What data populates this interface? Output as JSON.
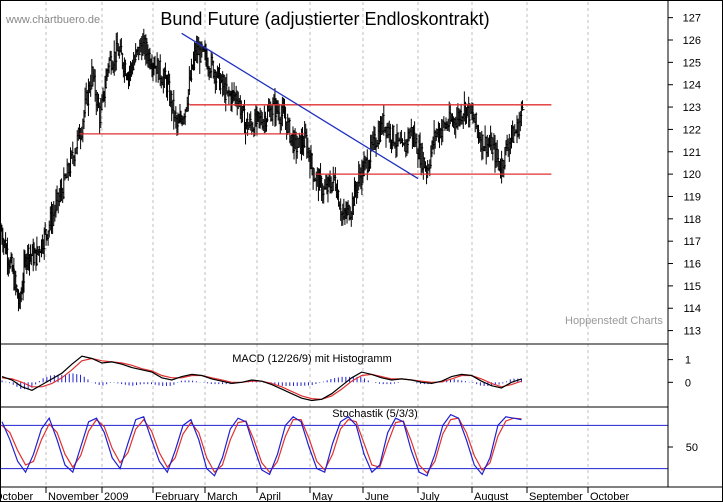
{
  "watermark": "www.chartbuero.de",
  "credit": "Hoppenstedt Charts",
  "colors": {
    "price_bar": "#000000",
    "support_line": "#e03030",
    "trend_line": "#2030c0",
    "macd_line": "#000000",
    "signal_line": "#e03030",
    "histogram": "#2020d0",
    "stoch_k": "#2020d0",
    "stoch_d": "#e03030",
    "stoch_level": "#2020d0",
    "grid": "#bfbfbf",
    "panel_border": "#000000"
  },
  "x_axis_labels": [
    "October",
    "November",
    "2009",
    "February",
    "March",
    "April",
    "May",
    "June",
    "July",
    "August",
    "September",
    "October"
  ],
  "chart_data": [
    {
      "type": "ohlc",
      "title": "Bund Future (adjustierter Endloskontrakt)",
      "ylim": [
        112.4,
        127.7
      ],
      "y_ticks": [
        113,
        114,
        115,
        116,
        117,
        118,
        119,
        120,
        121,
        122,
        123,
        124,
        125,
        126,
        127
      ],
      "approx_closes": [
        {
          "m": 0.0,
          "v": 117.5
        },
        {
          "m": 0.25,
          "v": 115.6
        },
        {
          "m": 0.4,
          "v": 114.1
        },
        {
          "m": 0.55,
          "v": 116.5
        },
        {
          "m": 0.75,
          "v": 116.3
        },
        {
          "m": 1.0,
          "v": 117.5
        },
        {
          "m": 1.3,
          "v": 119.5
        },
        {
          "m": 1.6,
          "v": 122.0
        },
        {
          "m": 1.8,
          "v": 124.5
        },
        {
          "m": 1.95,
          "v": 122.5
        },
        {
          "m": 2.1,
          "v": 125.0
        },
        {
          "m": 2.3,
          "v": 125.5
        },
        {
          "m": 2.5,
          "v": 124.5
        },
        {
          "m": 2.75,
          "v": 125.8
        },
        {
          "m": 3.0,
          "v": 125.0
        },
        {
          "m": 3.25,
          "v": 124.0
        },
        {
          "m": 3.45,
          "v": 122.0
        },
        {
          "m": 3.6,
          "v": 123.0
        },
        {
          "m": 3.8,
          "v": 125.5
        },
        {
          "m": 4.0,
          "v": 125.2
        },
        {
          "m": 4.2,
          "v": 124.5
        },
        {
          "m": 4.4,
          "v": 123.5
        },
        {
          "m": 4.6,
          "v": 123.5
        },
        {
          "m": 4.75,
          "v": 122.2
        },
        {
          "m": 4.9,
          "v": 122.2
        },
        {
          "m": 5.1,
          "v": 122.5
        },
        {
          "m": 5.3,
          "v": 123.0
        },
        {
          "m": 5.5,
          "v": 122.5
        },
        {
          "m": 5.7,
          "v": 121.2
        },
        {
          "m": 5.9,
          "v": 121.5
        },
        {
          "m": 6.05,
          "v": 120.0
        },
        {
          "m": 6.25,
          "v": 119.2
        },
        {
          "m": 6.45,
          "v": 119.8
        },
        {
          "m": 6.6,
          "v": 118.0
        },
        {
          "m": 6.75,
          "v": 118.5
        },
        {
          "m": 6.9,
          "v": 119.8
        },
        {
          "m": 7.05,
          "v": 120.5
        },
        {
          "m": 7.2,
          "v": 121.5
        },
        {
          "m": 7.35,
          "v": 122.3
        },
        {
          "m": 7.5,
          "v": 121.8
        },
        {
          "m": 7.7,
          "v": 121.0
        },
        {
          "m": 7.85,
          "v": 122.0
        },
        {
          "m": 8.0,
          "v": 121.0
        },
        {
          "m": 8.15,
          "v": 120.2
        },
        {
          "m": 8.3,
          "v": 121.8
        },
        {
          "m": 8.5,
          "v": 122.2
        },
        {
          "m": 8.7,
          "v": 122.5
        },
        {
          "m": 8.85,
          "v": 123.0
        },
        {
          "m": 9.0,
          "v": 122.5
        },
        {
          "m": 9.15,
          "v": 121.5
        },
        {
          "m": 9.35,
          "v": 121.2
        },
        {
          "m": 9.5,
          "v": 120.3
        },
        {
          "m": 9.65,
          "v": 121.5
        },
        {
          "m": 9.8,
          "v": 122.0
        },
        {
          "m": 9.9,
          "v": 122.9
        }
      ],
      "lines": [
        {
          "name": "resistance",
          "from": {
            "m": 8.05,
            "v": 123.1
          },
          "to": {
            "m": 10.4,
            "v": 123.1
          },
          "color": "#e03030"
        },
        {
          "name": "resistance-left",
          "from": {
            "m": 3.7,
            "v": 123.1
          },
          "to": {
            "m": 8.05,
            "v": 123.1
          },
          "color": "#e03030"
        },
        {
          "name": "support-upper",
          "from": {
            "m": 1.6,
            "v": 121.8
          },
          "to": {
            "m": 5.9,
            "v": 121.8
          },
          "color": "#e03030"
        },
        {
          "name": "support-lower",
          "from": {
            "m": 6.1,
            "v": 120.0
          },
          "to": {
            "m": 10.4,
            "v": 120.0
          },
          "color": "#e03030"
        },
        {
          "name": "trendline",
          "from": {
            "m": 3.55,
            "v": 126.3
          },
          "to": {
            "m": 8.0,
            "v": 119.8
          },
          "color": "#2030c0"
        }
      ]
    },
    {
      "type": "line",
      "title": "MACD (12/26/9) mit Histogramm",
      "y_ticks": [
        0,
        1
      ],
      "ylim": [
        -1.0,
        1.6
      ],
      "series": [
        {
          "key": "macd",
          "values": [
            0.25,
            0.1,
            -0.2,
            -0.35,
            -0.1,
            0.15,
            0.4,
            0.8,
            1.15,
            1.05,
            0.85,
            0.9,
            0.8,
            0.65,
            0.55,
            0.45,
            0.2,
            0.1,
            0.25,
            0.35,
            0.3,
            0.15,
            0.05,
            -0.05,
            0.0,
            0.1,
            0.05,
            -0.1,
            -0.3,
            -0.5,
            -0.7,
            -0.8,
            -0.75,
            -0.5,
            -0.15,
            0.2,
            0.45,
            0.35,
            0.2,
            0.1,
            0.15,
            0.1,
            0.0,
            -0.05,
            0.05,
            0.25,
            0.35,
            0.3,
            0.05,
            -0.15,
            -0.25,
            0.0,
            0.15
          ]
        },
        {
          "key": "signal",
          "values": [
            0.2,
            0.15,
            0.0,
            -0.2,
            -0.2,
            -0.05,
            0.2,
            0.55,
            0.95,
            1.05,
            0.95,
            0.9,
            0.85,
            0.75,
            0.6,
            0.5,
            0.3,
            0.2,
            0.2,
            0.3,
            0.3,
            0.2,
            0.1,
            0.0,
            0.0,
            0.05,
            0.05,
            -0.05,
            -0.2,
            -0.4,
            -0.6,
            -0.72,
            -0.75,
            -0.6,
            -0.3,
            0.05,
            0.3,
            0.35,
            0.25,
            0.15,
            0.15,
            0.1,
            0.05,
            0.0,
            0.02,
            0.15,
            0.3,
            0.3,
            0.15,
            -0.05,
            -0.2,
            -0.1,
            0.05
          ]
        }
      ]
    },
    {
      "type": "line",
      "title": "Stochastik (5/3/3)",
      "ylim": [
        0,
        100
      ],
      "y_ticks": [
        50
      ],
      "levels": [
        80,
        20
      ],
      "series": [
        {
          "key": "k",
          "values": [
            85,
            60,
            30,
            15,
            40,
            75,
            90,
            60,
            25,
            15,
            50,
            85,
            90,
            70,
            35,
            20,
            55,
            88,
            92,
            60,
            30,
            15,
            45,
            80,
            88,
            60,
            20,
            10,
            35,
            75,
            90,
            85,
            50,
            18,
            12,
            40,
            80,
            92,
            85,
            50,
            20,
            15,
            55,
            85,
            92,
            80,
            40,
            15,
            25,
            70,
            90,
            85,
            45,
            15,
            10,
            40,
            80,
            95,
            90,
            60,
            25,
            12,
            35,
            80,
            92,
            90,
            88
          ]
        },
        {
          "key": "d",
          "values": [
            80,
            70,
            45,
            25,
            30,
            60,
            82,
            70,
            40,
            22,
            38,
            72,
            88,
            78,
            48,
            28,
            42,
            75,
            88,
            72,
            42,
            22,
            35,
            68,
            84,
            70,
            35,
            15,
            25,
            60,
            84,
            86,
            60,
            28,
            15,
            30,
            65,
            88,
            88,
            62,
            30,
            18,
            40,
            75,
            88,
            85,
            55,
            25,
            22,
            55,
            84,
            86,
            58,
            25,
            14,
            30,
            68,
            88,
            90,
            70,
            38,
            18,
            28,
            65,
            86,
            90,
            89
          ]
        }
      ]
    }
  ]
}
